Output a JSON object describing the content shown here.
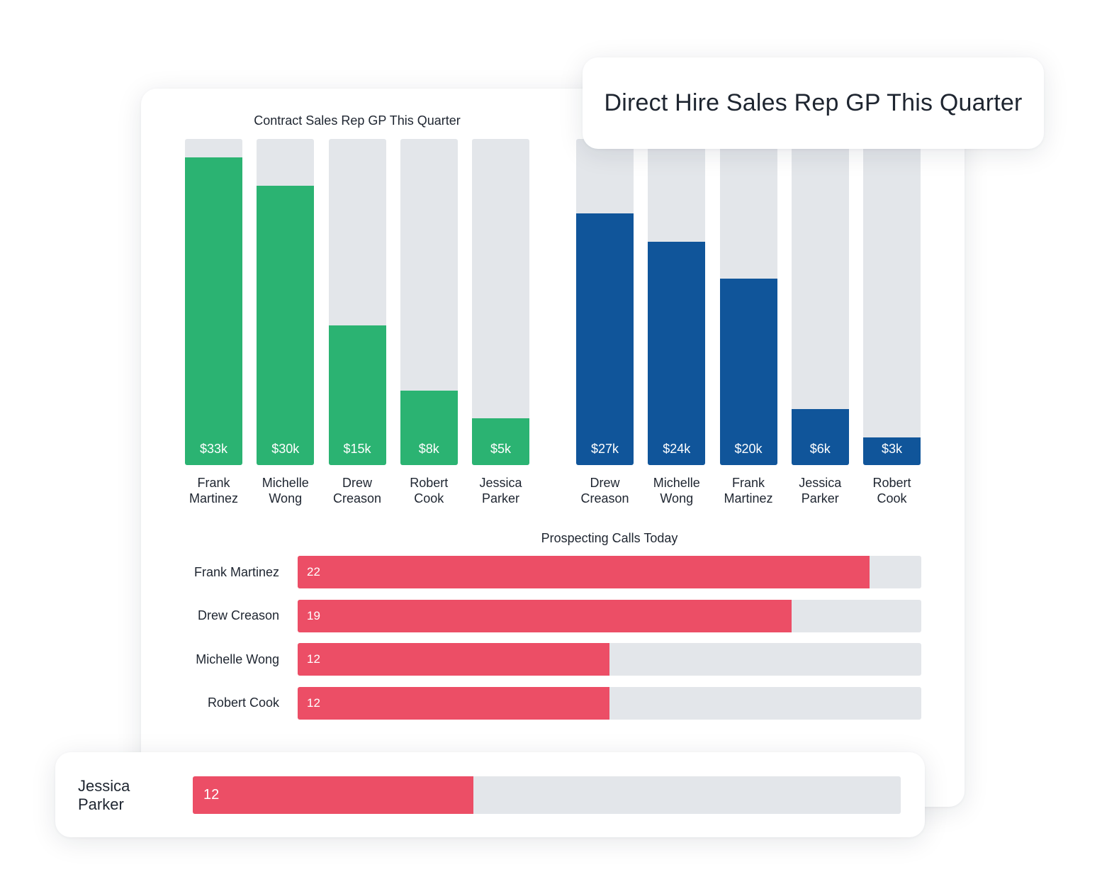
{
  "colors": {
    "contract_fill": "#2bb372",
    "direct_fill": "#10559a",
    "calls_fill": "#ec4e66",
    "track": "#e3e6ea"
  },
  "chart_data": [
    {
      "type": "bar",
      "title": "Contract Sales Rep GP This Quarter",
      "categories": [
        "Frank Martinez",
        "Michelle Wong",
        "Drew Creason",
        "Robert Cook",
        "Jessica Parker"
      ],
      "category_lines": [
        [
          "Frank",
          "Martinez"
        ],
        [
          "Michelle",
          "Wong"
        ],
        [
          "Drew",
          "Creason"
        ],
        [
          "Robert",
          "Cook"
        ],
        [
          "Jessica",
          "Parker"
        ]
      ],
      "values": [
        33,
        30,
        15,
        8,
        5
      ],
      "value_labels": [
        "$33k",
        "$30k",
        "$15k",
        "$8k",
        "$5k"
      ],
      "ylim": [
        0,
        35
      ]
    },
    {
      "type": "bar",
      "title": "Direct Hire Sales Rep GP This Quarter",
      "categories": [
        "Drew Creason",
        "Michelle Wong",
        "Frank Martinez",
        "Jessica Parker",
        "Robert Cook"
      ],
      "category_lines": [
        [
          "Drew",
          "Creason"
        ],
        [
          "Michelle",
          "Wong"
        ],
        [
          "Frank",
          "Martinez"
        ],
        [
          "Jessica",
          "Parker"
        ],
        [
          "Robert",
          "Cook"
        ]
      ],
      "values": [
        27,
        24,
        20,
        6,
        3
      ],
      "value_labels": [
        "$27k",
        "$24k",
        "$20k",
        "$6k",
        "$3k"
      ],
      "ylim": [
        0,
        35
      ]
    },
    {
      "type": "bar",
      "orientation": "horizontal",
      "title": "Prospecting Calls Today",
      "categories": [
        "Frank Martinez",
        "Drew Creason",
        "Michelle Wong",
        "Robert Cook",
        "Jessica Parker"
      ],
      "values": [
        22,
        19,
        12,
        12,
        12
      ],
      "value_labels": [
        "22",
        "19",
        "12",
        "12",
        "12"
      ],
      "xlim": [
        0,
        24
      ]
    }
  ]
}
